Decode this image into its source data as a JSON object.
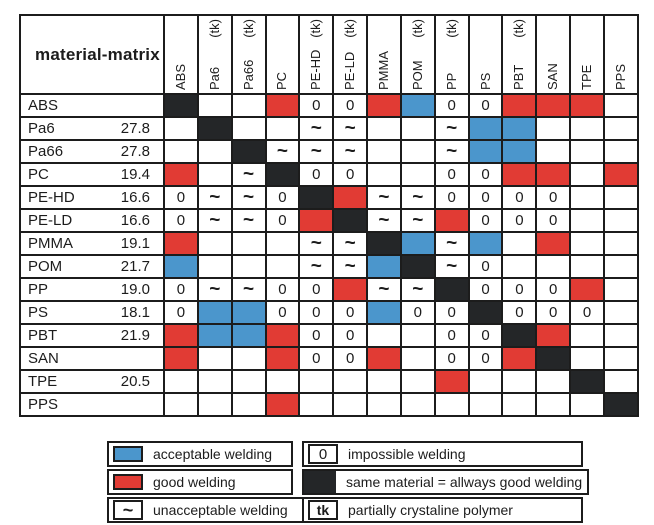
{
  "chart_data": {
    "type": "heatmap",
    "title": "material-matrix",
    "columns": [
      "ABS",
      "Pa6",
      "Pa66",
      "PC",
      "PE-HD",
      "PE-LD",
      "PMMA",
      "POM",
      "PP",
      "PS",
      "PBT",
      "SAN",
      "TPE",
      "PPS"
    ],
    "tk_columns": [
      "Pa6",
      "Pa66",
      "PE-HD",
      "PE-LD",
      "POM",
      "PP",
      "PBT"
    ],
    "tk_suffix": "(tk)",
    "rows": [
      {
        "label": "ABS",
        "value": "",
        "cells": [
          "S",
          "",
          "",
          "G",
          "0",
          "0",
          "G",
          "A",
          "0",
          "0",
          "G",
          "G",
          "G",
          ""
        ]
      },
      {
        "label": "Pa6",
        "value": "27.8",
        "cells": [
          "",
          "S",
          "",
          "",
          "~",
          "~",
          "",
          "",
          "~",
          "A",
          "A",
          "",
          "",
          ""
        ]
      },
      {
        "label": "Pa66",
        "value": "27.8",
        "cells": [
          "",
          "",
          "S",
          "~",
          "~",
          "~",
          "",
          "",
          "~",
          "A",
          "A",
          "",
          "",
          ""
        ]
      },
      {
        "label": "PC",
        "value": "19.4",
        "cells": [
          "G",
          "",
          "~",
          "S",
          "0",
          "0",
          "",
          "",
          "0",
          "0",
          "G",
          "G",
          "",
          "G"
        ]
      },
      {
        "label": "PE-HD",
        "value": "16.6",
        "cells": [
          "0",
          "~",
          "~",
          "0",
          "S",
          "G",
          "~",
          "~",
          "0",
          "0",
          "0",
          "0",
          "",
          ""
        ]
      },
      {
        "label": "PE-LD",
        "value": "16.6",
        "cells": [
          "0",
          "~",
          "~",
          "0",
          "G",
          "S",
          "~",
          "~",
          "G",
          "0",
          "0",
          "0",
          "",
          ""
        ]
      },
      {
        "label": "PMMA",
        "value": "19.1",
        "cells": [
          "G",
          "",
          "",
          "",
          "~",
          "~",
          "S",
          "A",
          "~",
          "A",
          "",
          "G",
          "",
          ""
        ]
      },
      {
        "label": "POM",
        "value": "21.7",
        "cells": [
          "A",
          "",
          "",
          "",
          "~",
          "~",
          "A",
          "S",
          "~",
          "0",
          "",
          "",
          "",
          ""
        ]
      },
      {
        "label": "PP",
        "value": "19.0",
        "cells": [
          "0",
          "~",
          "~",
          "0",
          "0",
          "G",
          "~",
          "~",
          "S",
          "0",
          "0",
          "0",
          "G",
          ""
        ]
      },
      {
        "label": "PS",
        "value": "18.1",
        "cells": [
          "0",
          "A",
          "A",
          "0",
          "0",
          "0",
          "A",
          "0",
          "0",
          "S",
          "0",
          "0",
          "0",
          ""
        ]
      },
      {
        "label": "PBT",
        "value": "21.9",
        "cells": [
          "G",
          "A",
          "A",
          "G",
          "0",
          "0",
          "",
          "",
          "0",
          "0",
          "S",
          "G",
          "",
          ""
        ]
      },
      {
        "label": "SAN",
        "value": "",
        "cells": [
          "G",
          "",
          "",
          "G",
          "0",
          "0",
          "G",
          "",
          "0",
          "0",
          "G",
          "S",
          "",
          ""
        ]
      },
      {
        "label": "TPE",
        "value": "20.5",
        "cells": [
          "",
          "",
          "",
          "",
          "",
          "",
          "",
          "",
          "G",
          "",
          "",
          "",
          "S",
          ""
        ]
      },
      {
        "label": "PPS",
        "value": "",
        "cells": [
          "",
          "",
          "",
          "G",
          "",
          "",
          "",
          "",
          "",
          "",
          "",
          "",
          "",
          "S"
        ]
      }
    ],
    "cell_code_meanings": {
      "S": "same material = allways good welding",
      "G": "good welding",
      "A": "acceptable welding",
      "0": "impossible welding",
      "~": "unacceptable welding"
    }
  },
  "colors": {
    "good_welding_red": "#e13b34",
    "acceptable_welding_blue": "#4b96cc",
    "same_material_black": "#242628",
    "grid_border": "#1c1c1c"
  },
  "legend": {
    "left": [
      {
        "swatch": "acceptable",
        "label": "acceptable welding"
      },
      {
        "swatch": "good",
        "label": "good welding"
      },
      {
        "symbol": "~",
        "label": "unacceptable welding"
      }
    ],
    "right": [
      {
        "symbol": "0",
        "label": "impossible welding"
      },
      {
        "swatch": "same",
        "label": "same material = allways good welding"
      },
      {
        "symbol": "tk",
        "label": "partially crystaline polymer"
      }
    ]
  }
}
